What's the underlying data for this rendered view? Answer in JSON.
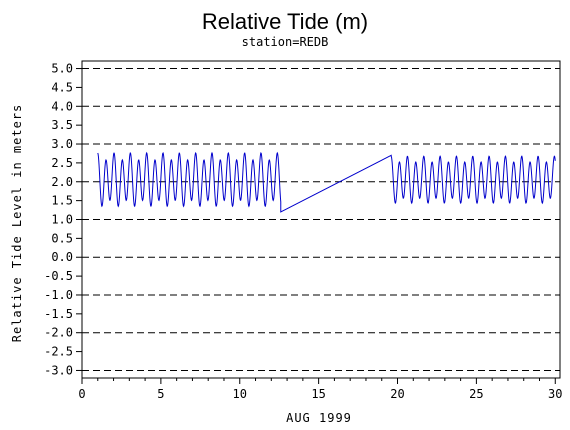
{
  "chart_data": {
    "type": "line",
    "title": "Relative Tide (m)",
    "subtitle": "station=REDB",
    "xlabel": "AUG 1999",
    "ylabel": "Relative Tide Level in meters",
    "xlim": [
      0,
      30.3
    ],
    "ylim": [
      -3.0,
      5.0
    ],
    "x_ticks": [
      "0",
      "5",
      "10",
      "15",
      "20",
      "25",
      "30"
    ],
    "y_ticks": [
      "5.0",
      "4.5",
      "4.0",
      "3.5",
      "3.0",
      "2.5",
      "2.0",
      "1.5",
      "1.0",
      "0.5",
      "0.0",
      "-0.5",
      "-1.0",
      "-1.5",
      "-2.0",
      "-2.5",
      "-3.0"
    ],
    "grid": "dashed horizontal lines at integer levels",
    "series": [
      {
        "color": "#0000cc",
        "segments": [
          {
            "kind": "tidal",
            "x_start": 1.0,
            "x_end": 12.6,
            "mean": 2.05,
            "semidiurnal_amp": 0.62,
            "diurnal_amp": 0.12,
            "period_days": 0.5175
          },
          {
            "kind": "linear",
            "points": [
              [
                12.6,
                1.2
              ],
              [
                19.6,
                2.7
              ]
            ]
          },
          {
            "kind": "tidal",
            "x_start": 19.6,
            "x_end": 30.0,
            "mean": 2.05,
            "semidiurnal_amp": 0.55,
            "diurnal_amp": 0.1,
            "period_days": 0.5175
          }
        ]
      }
    ]
  }
}
